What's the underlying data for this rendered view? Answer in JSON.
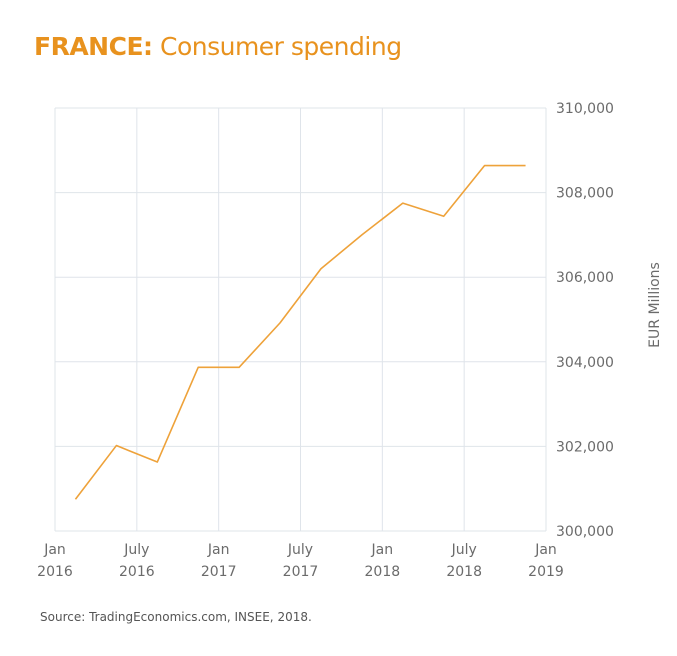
{
  "chart_data": {
    "type": "line",
    "title_bold": "FRANCE:",
    "title_rest": "Consumer spending",
    "ylabel": "EUR Millions",
    "xlabel": "",
    "ylim": [
      300000,
      310000
    ],
    "xlim": [
      2016.0,
      2019.0
    ],
    "grid": true,
    "yaxis_side": "right",
    "yticks": [
      300000,
      302000,
      304000,
      306000,
      308000,
      310000
    ],
    "ytick_labels": [
      "300,000",
      "302,000",
      "304,000",
      "306,000",
      "308,000",
      "310,000"
    ],
    "xticks": [
      2016.0,
      2016.5,
      2017.0,
      2017.5,
      2018.0,
      2018.5,
      2019.0
    ],
    "xtick_labels": [
      [
        "Jan",
        "2016"
      ],
      [
        "July",
        "2016"
      ],
      [
        "Jan",
        "2017"
      ],
      [
        "July",
        "2017"
      ],
      [
        "Jan",
        "2018"
      ],
      [
        "July",
        "2018"
      ],
      [
        "Jan",
        "2019"
      ]
    ],
    "series": [
      {
        "name": "Consumer spending",
        "color": "#eea23a",
        "x": [
          2016.125,
          2016.375,
          2016.625,
          2016.875,
          2017.125,
          2017.375,
          2017.625,
          2017.875,
          2018.125,
          2018.375,
          2018.625,
          2018.875
        ],
        "values": [
          300750,
          302020,
          301630,
          303870,
          303870,
          304920,
          306200,
          307000,
          307750,
          307440,
          308640,
          308640
        ]
      }
    ]
  },
  "source": "Source: TradingEconomics.com, INSEE, 2018."
}
